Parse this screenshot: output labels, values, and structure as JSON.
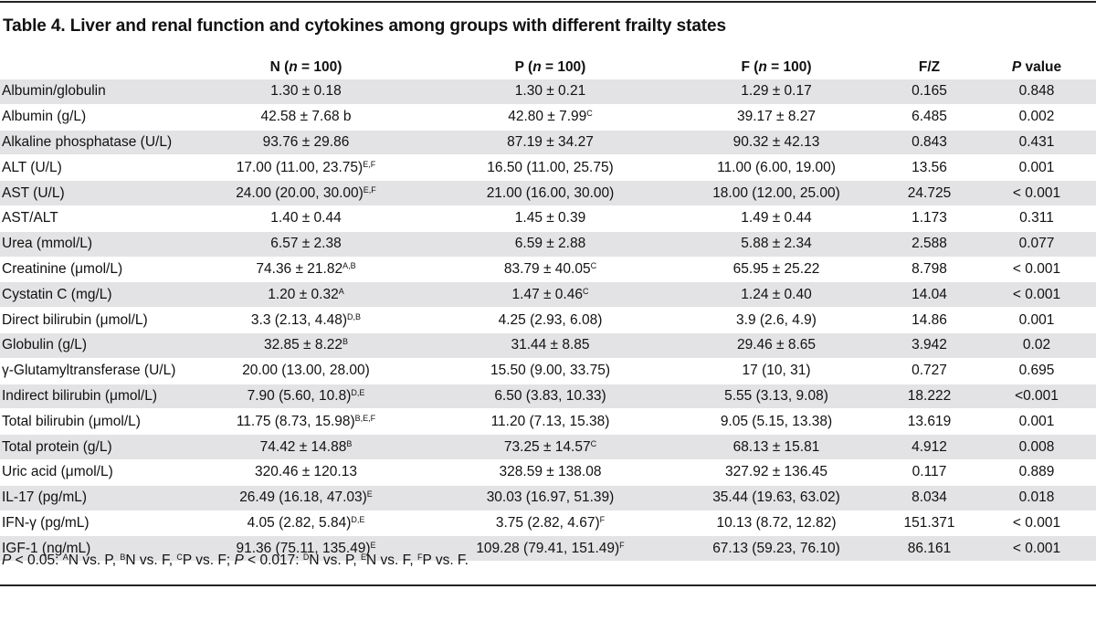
{
  "title": "Table 4. Liver and renal function and cytokines among groups with different frailty states",
  "columns": [
    {
      "pre": "",
      "italic": "",
      "post": ""
    },
    {
      "pre": "N (",
      "italic": "n",
      "post": " = 100)"
    },
    {
      "pre": "P (",
      "italic": "n",
      "post": " = 100)"
    },
    {
      "pre": "F (",
      "italic": "n",
      "post": " = 100)"
    },
    {
      "pre": "F/Z",
      "italic": "",
      "post": ""
    },
    {
      "pre": "",
      "italic": "P",
      "post": " value"
    }
  ],
  "rows": [
    {
      "label": "Albumin/globulin",
      "n": "1.30 ± 0.18",
      "n_sup": "",
      "p": "1.30 ± 0.21",
      "p_sup": "",
      "f": "1.29 ± 0.17",
      "f_sup": "",
      "fz": "0.165",
      "pval": "0.848"
    },
    {
      "label": "Albumin (g/L)",
      "n": "42.58 ± 7.68 b",
      "n_sup": "",
      "p": "42.80 ± 7.99",
      "p_sup": "C",
      "f": "39.17 ± 8.27",
      "f_sup": "",
      "fz": "6.485",
      "pval": "0.002"
    },
    {
      "label": "Alkaline phosphatase (U/L)",
      "n": "93.76 ± 29.86",
      "n_sup": "",
      "p": "87.19 ± 34.27",
      "p_sup": "",
      "f": "90.32 ± 42.13",
      "f_sup": "",
      "fz": "0.843",
      "pval": "0.431"
    },
    {
      "label": "ALT (U/L)",
      "n": "17.00 (11.00, 23.75)",
      "n_sup": "E,F",
      "p": "16.50 (11.00, 25.75)",
      "p_sup": "",
      "f": "11.00 (6.00, 19.00)",
      "f_sup": "",
      "fz": "13.56",
      "pval": "0.001"
    },
    {
      "label": "AST (U/L)",
      "n": "24.00 (20.00, 30.00)",
      "n_sup": "E,F",
      "p": "21.00 (16.00, 30.00)",
      "p_sup": "",
      "f": "18.00 (12.00, 25.00)",
      "f_sup": "",
      "fz": "24.725",
      "pval": "< 0.001"
    },
    {
      "label": "AST/ALT",
      "n": "1.40 ± 0.44",
      "n_sup": "",
      "p": "1.45 ± 0.39",
      "p_sup": "",
      "f": "1.49 ± 0.44",
      "f_sup": "",
      "fz": "1.173",
      "pval": "0.311"
    },
    {
      "label": "Urea (mmol/L)",
      "n": "6.57 ± 2.38",
      "n_sup": "",
      "p": "6.59 ± 2.88",
      "p_sup": "",
      "f": "5.88 ± 2.34",
      "f_sup": "",
      "fz": "2.588",
      "pval": "0.077"
    },
    {
      "label": "Creatinine (μmol/L)",
      "n": "74.36 ± 21.82",
      "n_sup": "A,B",
      "p": "83.79 ± 40.05",
      "p_sup": "C",
      "f": "65.95 ± 25.22",
      "f_sup": "",
      "fz": "8.798",
      "pval": "< 0.001"
    },
    {
      "label": "Cystatin C (mg/L)",
      "n": "1.20 ± 0.32",
      "n_sup": "A",
      "p": "1.47 ± 0.46",
      "p_sup": "C",
      "f": "1.24 ± 0.40",
      "f_sup": "",
      "fz": "14.04",
      "pval": "< 0.001"
    },
    {
      "label": "Direct bilirubin (μmol/L)",
      "n": "3.3 (2.13, 4.48)",
      "n_sup": "D,B",
      "p": "4.25 (2.93, 6.08)",
      "p_sup": "",
      "f": "3.9 (2.6, 4.9)",
      "f_sup": "",
      "fz": "14.86",
      "pval": "0.001"
    },
    {
      "label": "Globulin (g/L)",
      "n": "32.85 ± 8.22",
      "n_sup": "B",
      "p": "31.44 ± 8.85",
      "p_sup": "",
      "f": "29.46 ± 8.65",
      "f_sup": "",
      "fz": "3.942",
      "pval": "0.02"
    },
    {
      "label": "γ-Glutamyltransferase (U/L)",
      "n": "20.00 (13.00, 28.00)",
      "n_sup": "",
      "p": "15.50 (9.00, 33.75)",
      "p_sup": "",
      "f": "17 (10, 31)",
      "f_sup": "",
      "fz": "0.727",
      "pval": "0.695"
    },
    {
      "label": "Indirect bilirubin (μmol/L)",
      "n": "7.90 (5.60, 10.8)",
      "n_sup": "D,E",
      "p": "6.50 (3.83, 10.33)",
      "p_sup": "",
      "f": "5.55 (3.13, 9.08)",
      "f_sup": "",
      "fz": "18.222",
      "pval": "<0.001"
    },
    {
      "label": "Total bilirubin (μmol/L)",
      "n": "11.75 (8.73, 15.98)",
      "n_sup": "B,E,F",
      "p": "11.20 (7.13, 15.38)",
      "p_sup": "",
      "f": "9.05 (5.15, 13.38)",
      "f_sup": "",
      "fz": "13.619",
      "pval": "0.001"
    },
    {
      "label": "Total protein (g/L)",
      "n": "74.42 ± 14.88",
      "n_sup": "B",
      "p": "73.25 ± 14.57",
      "p_sup": "C",
      "f": "68.13 ± 15.81",
      "f_sup": "",
      "fz": "4.912",
      "pval": "0.008"
    },
    {
      "label": "Uric acid (μmol/L)",
      "n": "320.46 ± 120.13",
      "n_sup": "",
      "p": "328.59 ± 138.08",
      "p_sup": "",
      "f": "327.92 ± 136.45",
      "f_sup": "",
      "fz": "0.117",
      "pval": "0.889"
    },
    {
      "label": "IL-17 (pg/mL)",
      "n": "26.49 (16.18, 47.03)",
      "n_sup": "E",
      "p": "30.03 (16.97, 51.39)",
      "p_sup": "",
      "f": "35.44 (19.63, 63.02)",
      "f_sup": "",
      "fz": "8.034",
      "pval": "0.018"
    },
    {
      "label": "IFN-γ (pg/mL)",
      "n": "4.05 (2.82, 5.84)",
      "n_sup": "D,E",
      "p": "3.75 (2.82, 4.67)",
      "p_sup": "F",
      "f": "10.13 (8.72, 12.82)",
      "f_sup": "",
      "fz": "151.371",
      "pval": "< 0.001"
    },
    {
      "label": "IGF-1 (ng/mL)",
      "n": "91.36 (75.11, 135.49)",
      "n_sup": "E",
      "p": "109.28 (79.41, 151.49)",
      "p_sup": "F",
      "f": "67.13 (59.23, 76.10)",
      "f_sup": "",
      "fz": "86.161",
      "pval": "< 0.001"
    }
  ],
  "footnote": [
    {
      "italic": "P",
      "text": " < 0.05: ",
      "sup": "",
      "after": ""
    },
    {
      "italic": "",
      "text": "",
      "sup": "A",
      "after": "N vs. P, "
    },
    {
      "italic": "",
      "text": "",
      "sup": "B",
      "after": "N vs. F, "
    },
    {
      "italic": "",
      "text": "",
      "sup": "C",
      "after": "P vs. F; "
    },
    {
      "italic": "P",
      "text": " < 0.017: ",
      "sup": "",
      "after": ""
    },
    {
      "italic": "",
      "text": "",
      "sup": "D",
      "after": "N vs. P, "
    },
    {
      "italic": "",
      "text": "",
      "sup": "E",
      "after": "N vs. F, "
    },
    {
      "italic": "",
      "text": "",
      "sup": "F",
      "after": "P vs. F."
    }
  ]
}
